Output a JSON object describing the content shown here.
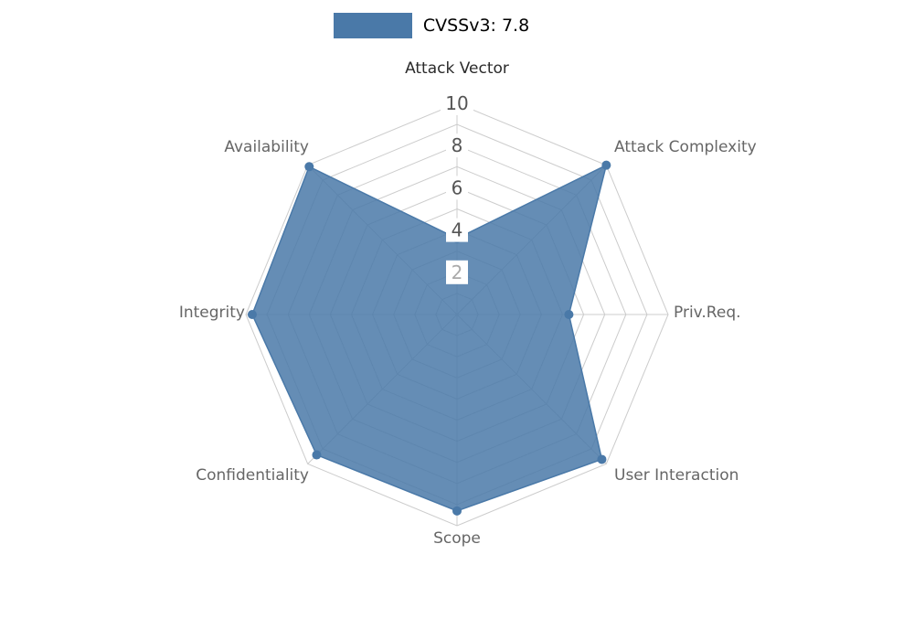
{
  "chart_data": {
    "type": "radar",
    "categories": [
      "Attack Vector",
      "Attack Complexity",
      "Priv.Req.",
      "User Interaction",
      "Scope",
      "Confidentiality",
      "Integrity",
      "Availability"
    ],
    "series": [
      {
        "name": "CVSSv3: 7.8",
        "color": "#4a79a8",
        "values": [
          3.6,
          10,
          5.3,
          9.7,
          9.3,
          9.4,
          9.7,
          9.9
        ]
      }
    ],
    "ticks": [
      2,
      4,
      6,
      8,
      10
    ],
    "ylim": [
      0,
      10
    ],
    "grid": true,
    "legend_position": "top"
  },
  "colors": {
    "series": "#4a79a8",
    "grid": "#cccccc",
    "axis_label": "#666666",
    "axis_label_first": "#2b2b2b",
    "tick_label": "#555555",
    "tick_label_minor": "#aaaaaa",
    "tick_box": "#ffffff",
    "background": "#ffffff"
  }
}
